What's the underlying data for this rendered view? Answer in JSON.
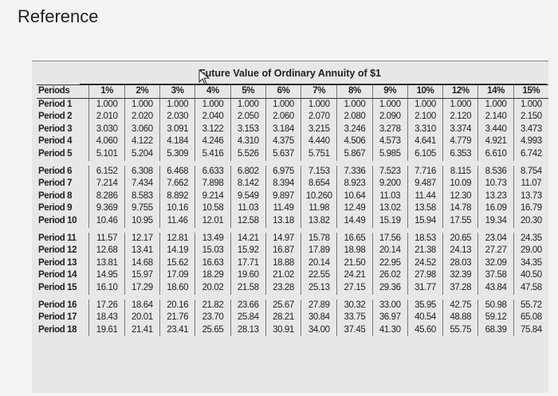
{
  "page": {
    "title": "Reference"
  },
  "table": {
    "title": "Future Value of Ordinary Annuity of $1",
    "periods_header": "Periods",
    "columns": [
      "1%",
      "2%",
      "3%",
      "4%",
      "5%",
      "6%",
      "7%",
      "8%",
      "9%",
      "10%",
      "12%",
      "14%",
      "15%"
    ],
    "groups": [
      [
        {
          "label": "Period 1",
          "values": [
            "1.000",
            "1.000",
            "1.000",
            "1.000",
            "1.000",
            "1.000",
            "1.000",
            "1.000",
            "1.000",
            "1.000",
            "1.000",
            "1.000",
            "1.000"
          ]
        },
        {
          "label": "Period 2",
          "values": [
            "2.010",
            "2.020",
            "2.030",
            "2.040",
            "2.050",
            "2.060",
            "2.070",
            "2.080",
            "2.090",
            "2.100",
            "2.120",
            "2.140",
            "2.150"
          ]
        },
        {
          "label": "Period 3",
          "values": [
            "3.030",
            "3.060",
            "3.091",
            "3.122",
            "3.153",
            "3.184",
            "3.215",
            "3.246",
            "3.278",
            "3.310",
            "3.374",
            "3.440",
            "3.473"
          ]
        },
        {
          "label": "Period 4",
          "values": [
            "4.060",
            "4.122",
            "4.184",
            "4.246",
            "4.310",
            "4.375",
            "4.440",
            "4.506",
            "4.573",
            "4.641",
            "4.779",
            "4.921",
            "4.993"
          ]
        },
        {
          "label": "Period 5",
          "values": [
            "5.101",
            "5.204",
            "5.309",
            "5.416",
            "5.526",
            "5.637",
            "5.751",
            "5.867",
            "5.985",
            "6.105",
            "6.353",
            "6.610",
            "6.742"
          ]
        }
      ],
      [
        {
          "label": "Period 6",
          "values": [
            "6.152",
            "6.308",
            "6.468",
            "6.633",
            "6.802",
            "6.975",
            "7.153",
            "7.336",
            "7.523",
            "7.716",
            "8.115",
            "8.536",
            "8.754"
          ]
        },
        {
          "label": "Period 7",
          "values": [
            "7.214",
            "7.434",
            "7.662",
            "7.898",
            "8.142",
            "8.394",
            "8.654",
            "8.923",
            "9.200",
            "9.487",
            "10.09",
            "10.73",
            "11.07"
          ]
        },
        {
          "label": "Period 8",
          "values": [
            "8.286",
            "8.583",
            "8.892",
            "9.214",
            "9.549",
            "9.897",
            "10.260",
            "10.64",
            "11.03",
            "11.44",
            "12.30",
            "13.23",
            "13.73"
          ]
        },
        {
          "label": "Period 9",
          "values": [
            "9.369",
            "9.755",
            "10.16",
            "10.58",
            "11.03",
            "11.49",
            "11.98",
            "12.49",
            "13.02",
            "13.58",
            "14.78",
            "16.09",
            "16.79"
          ]
        },
        {
          "label": "Period 10",
          "values": [
            "10.46",
            "10.95",
            "11.46",
            "12.01",
            "12.58",
            "13.18",
            "13.82",
            "14.49",
            "15.19",
            "15.94",
            "17.55",
            "19.34",
            "20.30"
          ]
        }
      ],
      [
        {
          "label": "Period 11",
          "values": [
            "11.57",
            "12.17",
            "12.81",
            "13.49",
            "14.21",
            "14.97",
            "15.78",
            "16.65",
            "17.56",
            "18.53",
            "20.65",
            "23.04",
            "24.35"
          ]
        },
        {
          "label": "Period 12",
          "values": [
            "12.68",
            "13.41",
            "14.19",
            "15.03",
            "15.92",
            "16.87",
            "17.89",
            "18.98",
            "20.14",
            "21.38",
            "24.13",
            "27.27",
            "29.00"
          ]
        },
        {
          "label": "Period 13",
          "values": [
            "13.81",
            "14.68",
            "15.62",
            "16.63",
            "17.71",
            "18.88",
            "20.14",
            "21.50",
            "22.95",
            "24.52",
            "28.03",
            "32.09",
            "34.35"
          ]
        },
        {
          "label": "Period 14",
          "values": [
            "14.95",
            "15.97",
            "17.09",
            "18.29",
            "19.60",
            "21.02",
            "22.55",
            "24.21",
            "26.02",
            "27.98",
            "32.39",
            "37.58",
            "40.50"
          ]
        },
        {
          "label": "Period 15",
          "values": [
            "16.10",
            "17.29",
            "18.60",
            "20.02",
            "21.58",
            "23.28",
            "25.13",
            "27.15",
            "29.36",
            "31.77",
            "37.28",
            "43.84",
            "47.58"
          ]
        }
      ],
      [
        {
          "label": "Period 16",
          "values": [
            "17.26",
            "18.64",
            "20.16",
            "21.82",
            "23.66",
            "25.67",
            "27.89",
            "30.32",
            "33.00",
            "35.95",
            "42.75",
            "50.98",
            "55.72"
          ]
        },
        {
          "label": "Period 17",
          "values": [
            "18.43",
            "20.01",
            "21.76",
            "23.70",
            "25.84",
            "28.21",
            "30.84",
            "33.75",
            "36.97",
            "40.54",
            "48.88",
            "59.12",
            "65.08"
          ]
        },
        {
          "label": "Period 18",
          "values": [
            "19.61",
            "21.41",
            "23.41",
            "25.65",
            "28.13",
            "30.91",
            "34.00",
            "37.45",
            "41.30",
            "45.60",
            "55.75",
            "68.39",
            "75.84"
          ]
        }
      ]
    ]
  }
}
